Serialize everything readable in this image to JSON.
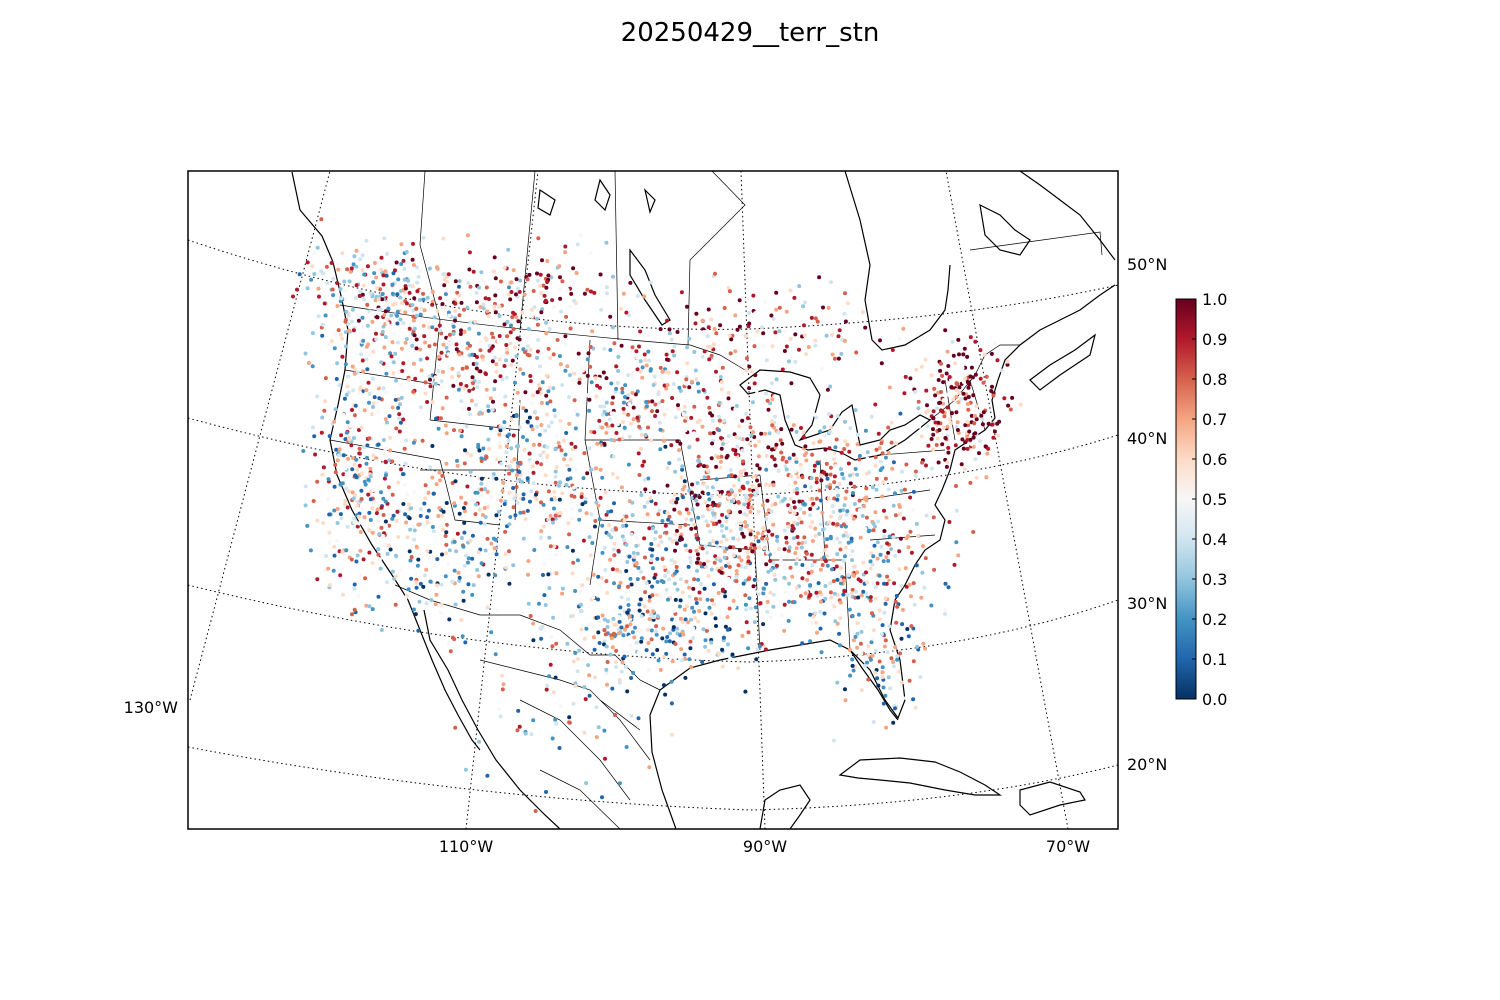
{
  "title": "20250429__terr_stn",
  "map": {
    "projection": "lambert-conformal",
    "region": "North America (CONUS, southern Canada, northern Mexico, Caribbean)",
    "meridian_labels": [
      "130°W",
      "110°W",
      "90°W",
      "70°W"
    ],
    "parallel_labels": [
      "50°N",
      "40°N",
      "30°N",
      "20°N"
    ],
    "graticule_style": "dotted",
    "coastline_color": "#000000",
    "stations": "scatter of surface stations colored by value"
  },
  "colorbar": {
    "colormap": "RdBu_r",
    "min": 0.0,
    "max": 1.0,
    "tick_labels": [
      "0.0",
      "0.1",
      "0.2",
      "0.3",
      "0.4",
      "0.5",
      "0.6",
      "0.7",
      "0.8",
      "0.9",
      "1.0"
    ],
    "colors": [
      "#053061",
      "#2166ac",
      "#4393c3",
      "#92c5de",
      "#d1e5f0",
      "#f7f7f7",
      "#fddbc7",
      "#f4a582",
      "#d6604d",
      "#b2182b",
      "#67001f"
    ]
  }
}
